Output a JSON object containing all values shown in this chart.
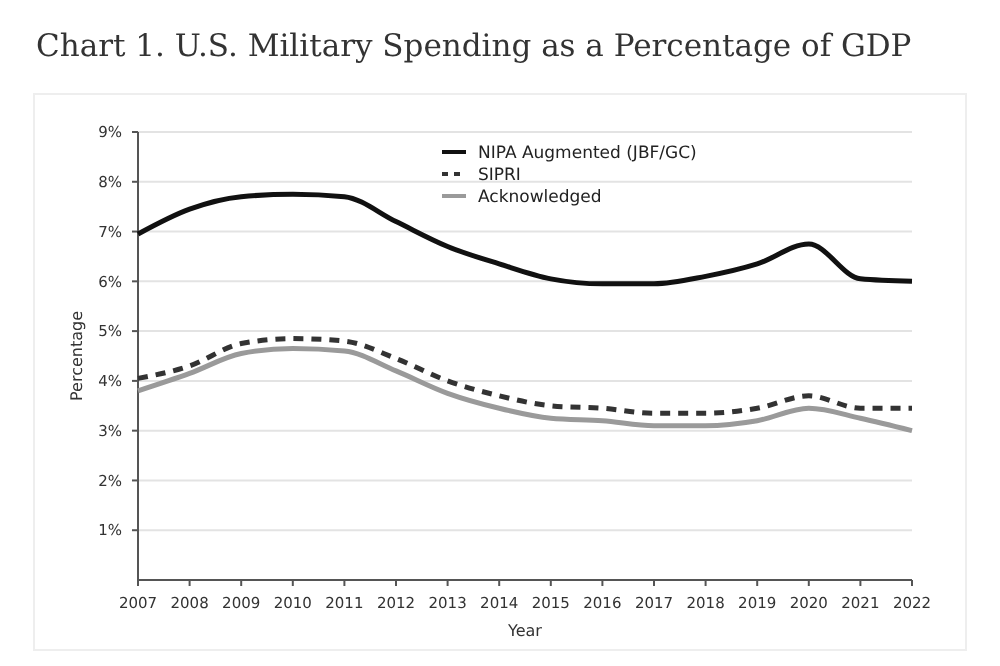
{
  "chart_data": {
    "type": "line",
    "title": "Chart 1. U.S. Military Spending as a Percentage of GDP",
    "xlabel": "Year",
    "ylabel": "Percentage",
    "x": [
      2007,
      2008,
      2009,
      2010,
      2011,
      2012,
      2013,
      2014,
      2015,
      2016,
      2017,
      2018,
      2019,
      2020,
      2021,
      2022
    ],
    "xlim": [
      2007,
      2022
    ],
    "xticks": [
      2007,
      2008,
      2009,
      2010,
      2011,
      2012,
      2013,
      2014,
      2015,
      2016,
      2017,
      2018,
      2019,
      2020,
      2021,
      2022
    ],
    "ylim": [
      0,
      9
    ],
    "yticks": [
      {
        "value": 1,
        "label": "1%"
      },
      {
        "value": 2,
        "label": "2%"
      },
      {
        "value": 3,
        "label": "3%"
      },
      {
        "value": 4,
        "label": "4%"
      },
      {
        "value": 5,
        "label": "5%"
      },
      {
        "value": 6,
        "label": "6%"
      },
      {
        "value": 7,
        "label": "7%"
      },
      {
        "value": 8,
        "label": "8%"
      },
      {
        "value": 9,
        "label": "9%"
      }
    ],
    "grid": "y",
    "legend": "top right",
    "marker": "none",
    "series": [
      {
        "name": "NIPA Augmented (JBF/GC)",
        "color": "#111111",
        "line_style": "solid",
        "values": [
          6.95,
          7.45,
          7.7,
          7.75,
          7.7,
          7.2,
          6.7,
          6.35,
          6.05,
          5.95,
          5.95,
          6.1,
          6.35,
          6.75,
          6.05,
          6.0
        ]
      },
      {
        "name": "SIPRI",
        "color": "#333333",
        "line_style": "dashed",
        "values": [
          4.05,
          4.3,
          4.75,
          4.85,
          4.8,
          4.45,
          4.0,
          3.7,
          3.5,
          3.45,
          3.35,
          3.35,
          3.45,
          3.7,
          3.45,
          3.45
        ]
      },
      {
        "name": "Acknowledged",
        "color": "#9a9a9a",
        "line_style": "solid",
        "values": [
          3.8,
          4.15,
          4.55,
          4.65,
          4.6,
          4.2,
          3.75,
          3.45,
          3.25,
          3.2,
          3.1,
          3.1,
          3.2,
          3.45,
          3.25,
          3.0
        ]
      }
    ]
  }
}
